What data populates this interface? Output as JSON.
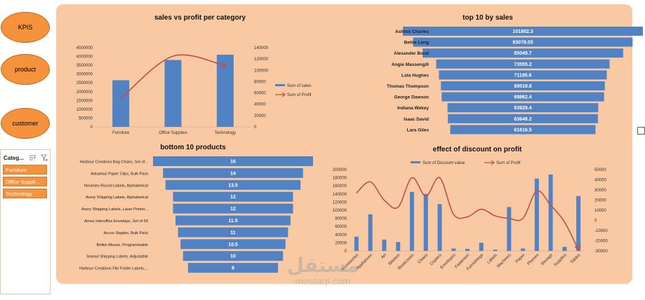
{
  "nav": {
    "kpis": "KPIS",
    "product": "product",
    "customer": "customer"
  },
  "slicer": {
    "title": "Categ...",
    "icons": [
      "multi-select-icon",
      "clear-filter-icon"
    ],
    "items": [
      "Furniture",
      "Office Suppli...",
      "Technology"
    ]
  },
  "colors": {
    "bar": "#5182c3",
    "line": "#c0504d",
    "panel": "#f8c9a3",
    "button": "#f4923d"
  },
  "watermark": {
    "arabic": "مستقل",
    "latin": "mostaql.com"
  },
  "chart_data": [
    {
      "id": "sales-profit",
      "type": "bar",
      "title": "sales vs profit per category",
      "categories": [
        "Furniture",
        "Office Supplies",
        "Technology"
      ],
      "y_ticks": [
        "4500000",
        "4000000",
        "3500000",
        "3000000",
        "2500000",
        "2000000",
        "1500000",
        "1000000",
        "500000",
        "0"
      ],
      "y2_ticks": [
        "140000",
        "120000",
        "100000",
        "80000",
        "60000",
        "40000",
        "20000",
        "0"
      ],
      "ylim": [
        0,
        4500000
      ],
      "y2lim": [
        0,
        140000
      ],
      "series": [
        {
          "name": "Sum of sales",
          "values": [
            2650000,
            3800000,
            4100000
          ]
        },
        {
          "name": "Sum of Profit",
          "values": [
            50000,
            125000,
            108000
          ]
        }
      ],
      "legend": "right"
    },
    {
      "id": "top10",
      "type": "bar",
      "title": "top 10 by sales",
      "orientation": "horizontal",
      "categories": [
        "Ashton Charles",
        "Bettie Lang",
        "Alexander Bond",
        "Angie Massengill",
        "Lola Hughes",
        "Thomas Thompson",
        "George Dawson",
        "Indiana Wekey",
        "Isaac David",
        "Lara Giles"
      ],
      "labels": [
        "101802.3",
        "93078.05",
        "85049.7",
        "73555.2",
        "71195.6",
        "69519.8",
        "68862.4",
        "63929.4",
        "63648.2",
        "61616.5"
      ],
      "values": [
        101802.3,
        93078.05,
        85049.7,
        73555.2,
        71195.6,
        69519.8,
        68862.4,
        63929.4,
        63648.2,
        61616.5
      ]
    },
    {
      "id": "bottom10",
      "type": "bar",
      "title": "bottom 10 products",
      "orientation": "horizontal",
      "categories": [
        "Harbour Creations Bag Chairs, Set of...",
        "Advantus Paper Clips, Bulk Pack",
        "Novimex Round Labels, Alphabetical",
        "Avery Shipping Labels, Alphabetical",
        "Avery Shipping Labels, Laser Printer...",
        "Ames Interoffice Envelope, Set of 50",
        "Accos Staples, Bulk Pack",
        "Belkin Mouse, Programmable",
        "Smead Shipping Labels, Adjustable",
        "Harbour Creations File Folder Labels,..."
      ],
      "labels": [
        "16",
        "14",
        "13.5",
        "12",
        "12",
        "11.5",
        "11",
        "10.5",
        "10",
        "9"
      ],
      "values": [
        16,
        14,
        13.5,
        12,
        12,
        11.5,
        11,
        10.5,
        10,
        9
      ]
    },
    {
      "id": "discount",
      "type": "bar",
      "title": "effect of discount on profit",
      "categories": [
        "Accessories",
        "Appliances",
        "Art",
        "Binders",
        "Bookcases",
        "Chairs",
        "Copiers",
        "Envelopes",
        "Fasteners",
        "Furnishings",
        "Labels",
        "Machines",
        "Paper",
        "Phones",
        "Storage",
        "Supplies",
        "Tables"
      ],
      "y_ticks": [
        "200000",
        "180000",
        "160000",
        "140000",
        "120000",
        "100000",
        "80000",
        "60000",
        "40000",
        "20000",
        "0"
      ],
      "y2_ticks": [
        "50000",
        "40000",
        "30000",
        "20000",
        "10000",
        "0",
        "-10000",
        "-20000",
        "-30000"
      ],
      "ylim": [
        0,
        200000
      ],
      "y2lim": [
        -30000,
        50000
      ],
      "series": [
        {
          "name": "Sum of Discount value",
          "values": [
            35000,
            90000,
            28000,
            22000,
            145000,
            140000,
            115000,
            6000,
            5000,
            20000,
            3000,
            108000,
            6000,
            178000,
            188000,
            10000,
            135000
          ]
        },
        {
          "name": "Sum of Profit",
          "values": [
            27000,
            38000,
            20000,
            13000,
            42000,
            24000,
            42000,
            6000,
            3500,
            11000,
            4500,
            2000,
            2000,
            29000,
            15000,
            -1500,
            -29000
          ]
        }
      ],
      "legend": "top"
    }
  ]
}
